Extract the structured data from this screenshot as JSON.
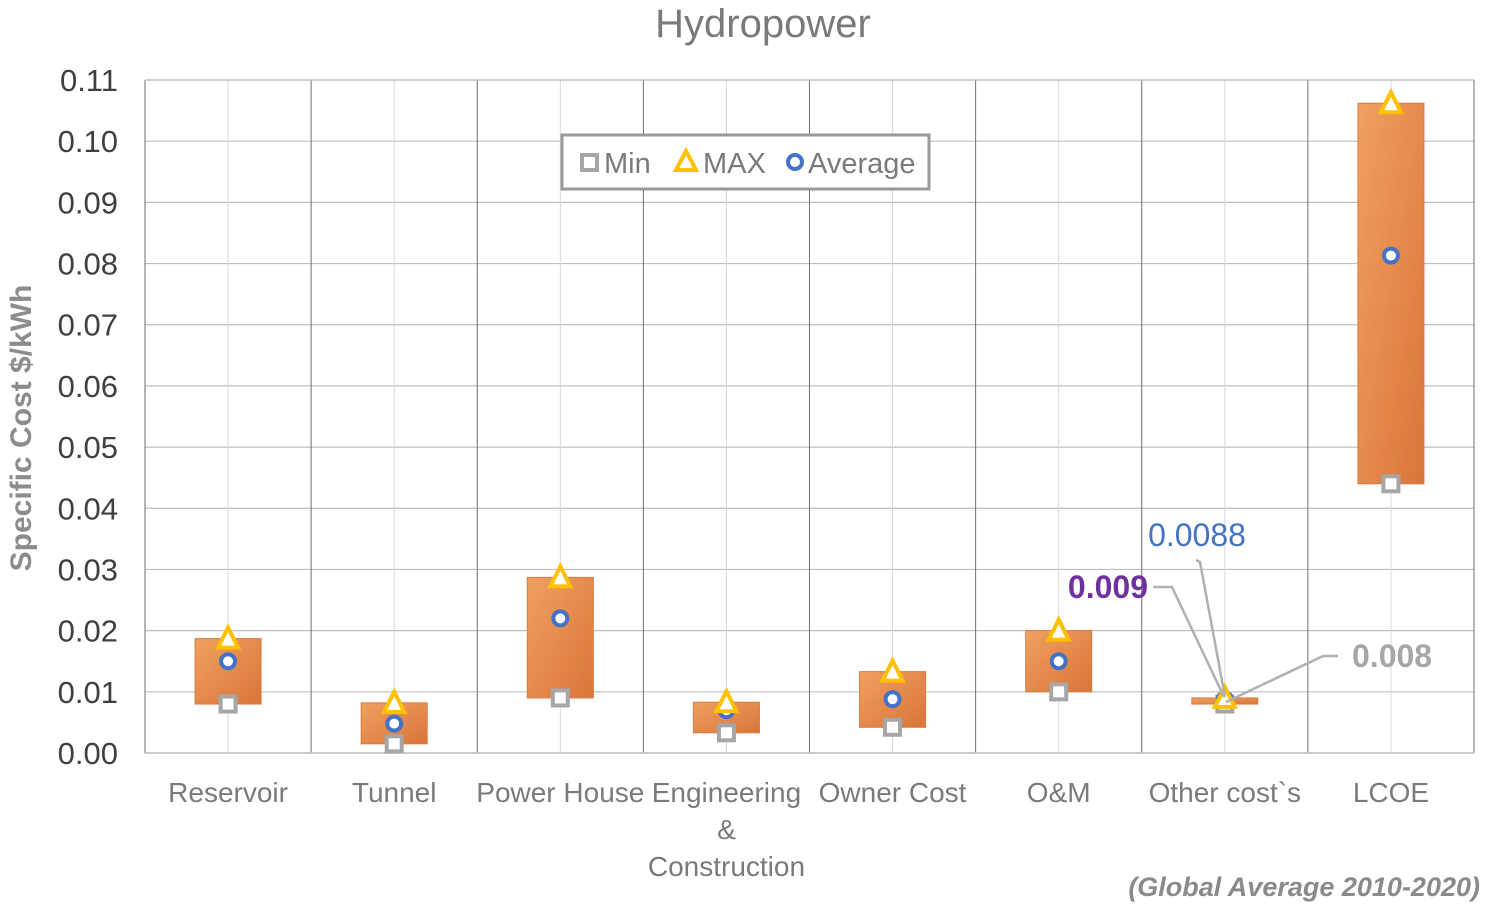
{
  "chart_data": {
    "type": "range-bar",
    "title": "Hydropower",
    "ylabel": "Specific Cost  $/kWh",
    "xlabel": "",
    "ylim": [
      0,
      0.11
    ],
    "yticks": [
      "0.00",
      "0.01",
      "0.02",
      "0.03",
      "0.04",
      "0.05",
      "0.06",
      "0.07",
      "0.08",
      "0.09",
      "0.10",
      "0.11"
    ],
    "categories": [
      [
        "Reservoir"
      ],
      [
        "Tunnel"
      ],
      [
        "Power House"
      ],
      [
        "Engineering",
        "&",
        "Construction"
      ],
      [
        "Owner Cost"
      ],
      [
        "O&M"
      ],
      [
        "Other cost`s"
      ],
      [
        "LCOE"
      ]
    ],
    "series": [
      {
        "name": "Min",
        "marker": "square",
        "color": "#a6a6a6",
        "values": [
          0.008,
          0.0015,
          0.009,
          0.0033,
          0.0042,
          0.01,
          0.008,
          0.044
        ]
      },
      {
        "name": "MAX",
        "marker": "triangle",
        "color": "#ffc000",
        "values": [
          0.0187,
          0.0082,
          0.0287,
          0.0083,
          0.0133,
          0.02,
          0.009,
          0.1062
        ]
      },
      {
        "name": "Average",
        "marker": "circle",
        "color": "#4472c4",
        "values": [
          0.015,
          0.0048,
          0.022,
          0.007,
          0.0088,
          0.015,
          0.0088,
          0.0813
        ]
      }
    ],
    "bar_color": "#e8834a",
    "legend": {
      "items": [
        "Min",
        "MAX",
        "Average"
      ],
      "placement": "top-center"
    },
    "annotations": [
      {
        "text": "0.0088",
        "color": "#4472c4"
      },
      {
        "text": "0.009",
        "color": "#7030a0"
      },
      {
        "text": "0.008",
        "color": "#a6a6a6"
      }
    ],
    "note": "(Global Average  2010-2020)"
  }
}
